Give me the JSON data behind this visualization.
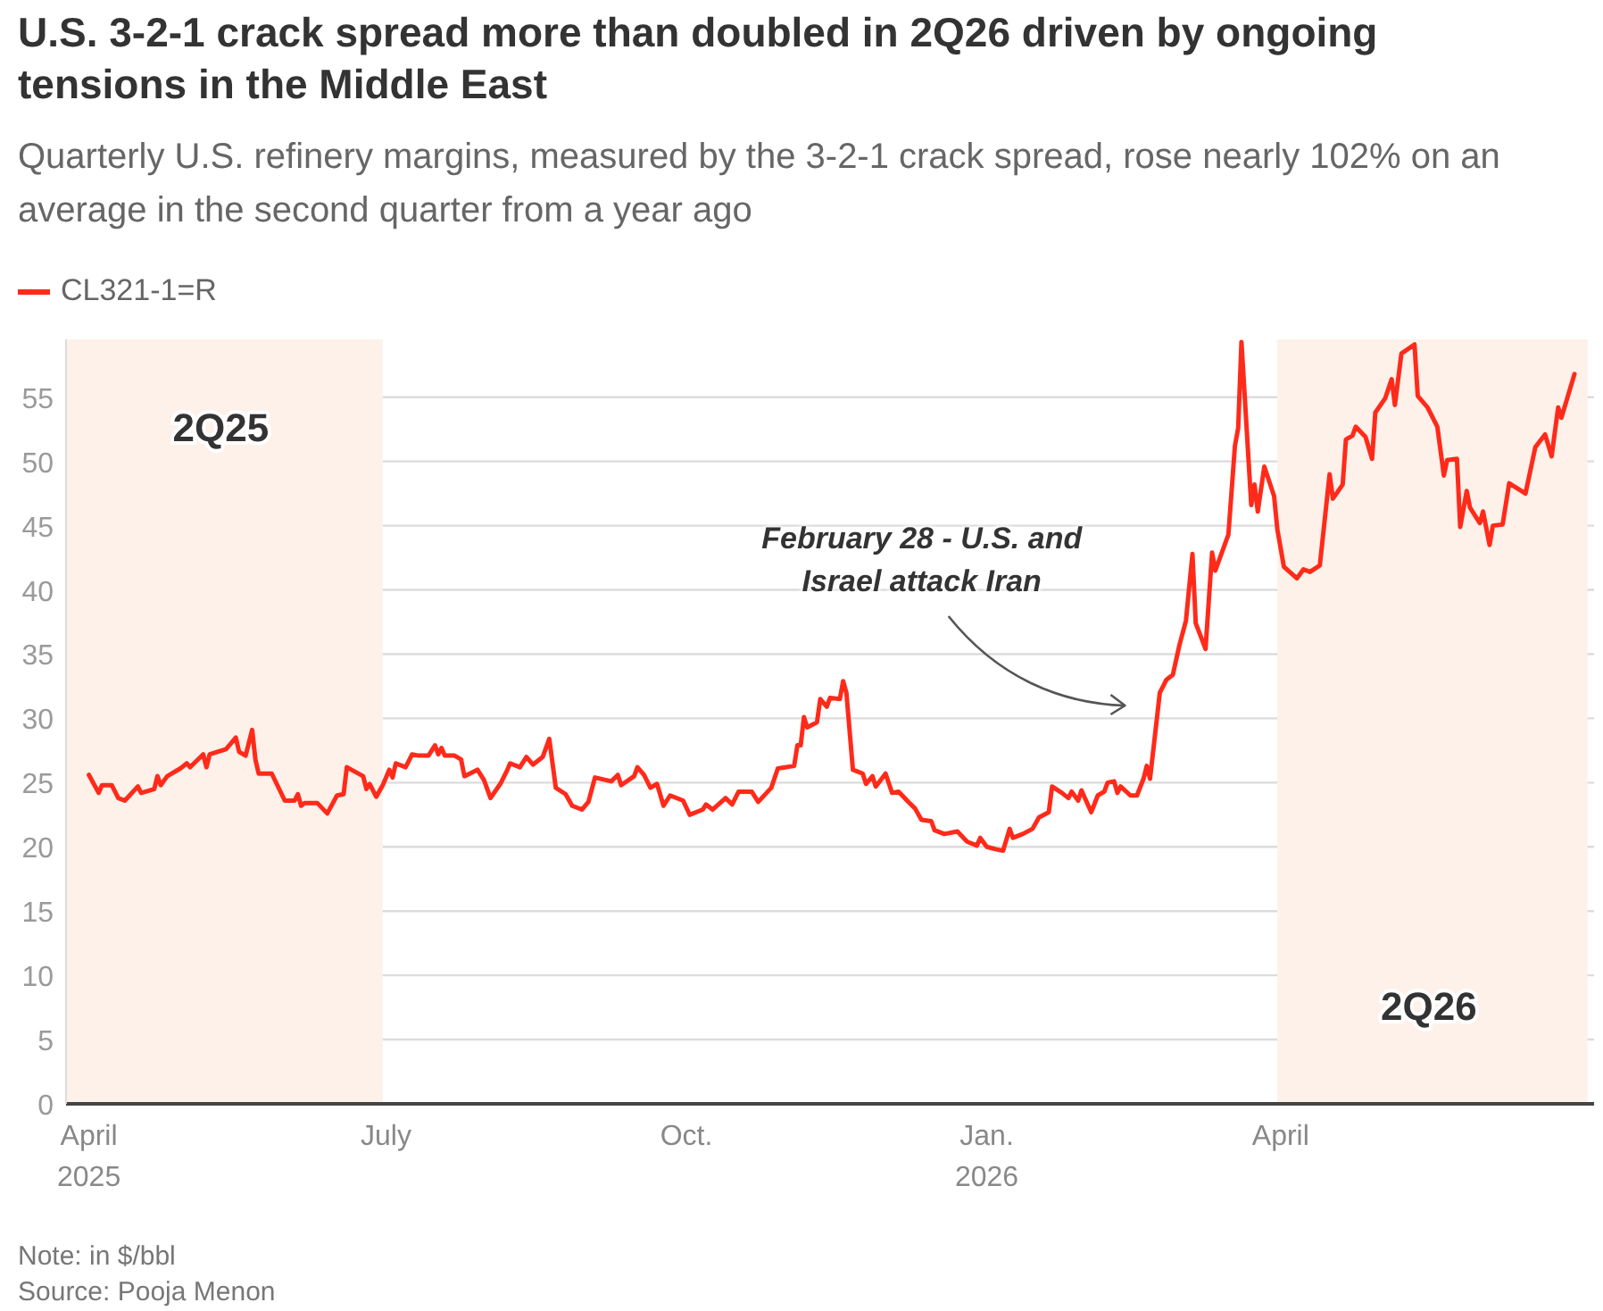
{
  "chart_data": {
    "type": "line",
    "title": "U.S. 3-2-1 crack spread more than doubled in 2Q26 driven by ongoing tensions in the Middle East",
    "subtitle": "Quarterly U.S. refinery margins, measured by the 3-2-1 crack spread, rose nearly 102% on an average in the second quarter from a year ago",
    "x": [
      "2025-04-01",
      "2025-04-04",
      "2025-04-05",
      "2025-04-08",
      "2025-04-10",
      "2025-04-12",
      "2025-04-16",
      "2025-04-17",
      "2025-04-21",
      "2025-04-22",
      "2025-04-23",
      "2025-04-25",
      "2025-04-29",
      "2025-05-01",
      "2025-05-02",
      "2025-05-06",
      "2025-05-07",
      "2025-05-08",
      "2025-05-13",
      "2025-05-16",
      "2025-05-17",
      "2025-05-19",
      "2025-05-21",
      "2025-05-22",
      "2025-05-23",
      "2025-05-27",
      "2025-05-31",
      "2025-06-03",
      "2025-06-04",
      "2025-06-05",
      "2025-06-06",
      "2025-06-10",
      "2025-06-13",
      "2025-06-16",
      "2025-06-18",
      "2025-06-19",
      "2025-06-24",
      "2025-06-25",
      "2025-06-26",
      "2025-06-28",
      "2025-06-30",
      "2025-07-02",
      "2025-07-03",
      "2025-07-04",
      "2025-07-07",
      "2025-07-09",
      "2025-07-11",
      "2025-07-14",
      "2025-07-16",
      "2025-07-17",
      "2025-07-18",
      "2025-07-19",
      "2025-07-22",
      "2025-07-24",
      "2025-07-25",
      "2025-07-29",
      "2025-07-31",
      "2025-08-02",
      "2025-08-05",
      "2025-08-06",
      "2025-08-07",
      "2025-08-08",
      "2025-08-11",
      "2025-08-13",
      "2025-08-15",
      "2025-08-18",
      "2025-08-20",
      "2025-08-22",
      "2025-08-25",
      "2025-08-27",
      "2025-08-30",
      "2025-09-01",
      "2025-09-03",
      "2025-09-08",
      "2025-09-10",
      "2025-09-11",
      "2025-09-15",
      "2025-09-16",
      "2025-09-18",
      "2025-09-20",
      "2025-09-22",
      "2025-09-24",
      "2025-09-26",
      "2025-09-30",
      "2025-10-02",
      "2025-10-06",
      "2025-10-07",
      "2025-10-09",
      "2025-10-13",
      "2025-10-15",
      "2025-10-17",
      "2025-10-21",
      "2025-10-23",
      "2025-10-27",
      "2025-10-29",
      "2025-11-03",
      "2025-11-04",
      "2025-11-05",
      "2025-11-06",
      "2025-11-07",
      "2025-11-10",
      "2025-11-11",
      "2025-11-13",
      "2025-11-14",
      "2025-11-17",
      "2025-11-18",
      "2025-11-19",
      "2025-11-21",
      "2025-11-24",
      "2025-11-25",
      "2025-11-27",
      "2025-11-28",
      "2025-12-01",
      "2025-12-03",
      "2025-12-05",
      "2025-12-08",
      "2025-12-10",
      "2025-12-12",
      "2025-12-15",
      "2025-12-16",
      "2025-12-19",
      "2025-12-23",
      "2025-12-26",
      "2025-12-29",
      "2025-12-30",
      "2026-01-01",
      "2026-01-04",
      "2026-01-06",
      "2026-01-08",
      "2026-01-09",
      "2026-01-12",
      "2026-01-15",
      "2026-01-17",
      "2026-01-20",
      "2026-01-21",
      "2026-01-24",
      "2026-01-26",
      "2026-01-27",
      "2026-01-29",
      "2026-01-30",
      "2026-02-02",
      "2026-02-04",
      "2026-02-06",
      "2026-02-07",
      "2026-02-09",
      "2026-02-10",
      "2026-02-11",
      "2026-02-14",
      "2026-02-16",
      "2026-02-18",
      "2026-02-19",
      "2026-02-20",
      "2026-02-23",
      "2026-02-25",
      "2026-02-27",
      "2026-03-01",
      "2026-03-03",
      "2026-03-05",
      "2026-03-06",
      "2026-03-09",
      "2026-03-11",
      "2026-03-12",
      "2026-03-16",
      "2026-03-18",
      "2026-03-19",
      "2026-03-20",
      "2026-03-23",
      "2026-03-24",
      "2026-03-25",
      "2026-03-27",
      "2026-03-30",
      "2026-03-31",
      "2026-04-02",
      "2026-04-06",
      "2026-04-08",
      "2026-04-10",
      "2026-04-13",
      "2026-04-16",
      "2026-04-17",
      "2026-04-20",
      "2026-04-21",
      "2026-04-23",
      "2026-04-24",
      "2026-04-27",
      "2026-04-29",
      "2026-04-30",
      "2026-05-03",
      "2026-05-05",
      "2026-05-06",
      "2026-05-08",
      "2026-05-12",
      "2026-05-13",
      "2026-05-16",
      "2026-05-19",
      "2026-05-21",
      "2026-05-22",
      "2026-05-25",
      "2026-05-26",
      "2026-05-28",
      "2026-05-29",
      "2026-06-01",
      "2026-06-02",
      "2026-06-04",
      "2026-06-05",
      "2026-06-08",
      "2026-06-10",
      "2026-06-15",
      "2026-06-18",
      "2026-06-21",
      "2026-06-23",
      "2026-06-25",
      "2026-06-26",
      "2026-06-28",
      "2026-06-30"
    ],
    "series": [
      {
        "name": "CL321-1=R",
        "color": "#ff2a1a",
        "values": [
          25.6,
          24.2,
          24.8,
          24.8,
          23.8,
          23.6,
          24.7,
          24.2,
          24.5,
          25.5,
          24.8,
          25.5,
          26.1,
          26.5,
          26.2,
          27.2,
          26.2,
          27.2,
          27.6,
          28.5,
          27.4,
          27.1,
          29.1,
          26.8,
          25.7,
          25.7,
          23.6,
          23.6,
          24.1,
          23.2,
          23.4,
          23.4,
          22.6,
          24.0,
          24.1,
          26.2,
          25.5,
          24.5,
          24.9,
          23.9,
          24.8,
          26.0,
          25.4,
          26.5,
          26.2,
          27.2,
          27.1,
          27.1,
          27.9,
          27.2,
          27.7,
          27.1,
          27.1,
          26.8,
          25.5,
          26.0,
          25.2,
          23.8,
          24.9,
          25.4,
          25.9,
          26.5,
          26.2,
          27.0,
          26.4,
          27.0,
          28.4,
          24.6,
          24.1,
          23.2,
          22.9,
          23.5,
          25.4,
          25.1,
          25.6,
          24.8,
          25.5,
          26.2,
          25.6,
          24.6,
          24.9,
          23.2,
          24.0,
          23.6,
          22.5,
          22.9,
          23.3,
          22.9,
          23.8,
          23.3,
          24.3,
          24.3,
          23.5,
          24.6,
          26.1,
          26.3,
          27.9,
          27.9,
          30.1,
          29.3,
          29.7,
          31.5,
          30.9,
          31.6,
          31.5,
          32.9,
          32.0,
          26.0,
          25.7,
          24.9,
          25.5,
          24.7,
          25.7,
          24.2,
          24.3,
          23.5,
          23.0,
          22.1,
          22.0,
          21.3,
          21.0,
          21.2,
          20.4,
          20.1,
          20.7,
          20.0,
          19.8,
          19.7,
          21.4,
          20.7,
          21.0,
          21.4,
          22.3,
          22.7,
          24.7,
          24.2,
          23.8,
          24.3,
          23.6,
          24.4,
          22.7,
          24.0,
          24.3,
          25.0,
          25.1,
          24.2,
          24.7,
          24.0,
          24.0,
          25.3,
          26.3,
          25.3,
          32.0,
          33.0,
          33.4,
          35.7,
          37.6,
          42.8,
          37.4,
          35.4,
          42.9,
          41.5,
          44.3,
          51.2,
          52.6,
          59.3,
          46.6,
          48.2,
          46.1,
          49.6,
          47.3,
          44.7,
          41.8,
          40.9,
          41.6,
          41.4,
          41.9,
          49.0,
          47.1,
          48.2,
          51.7,
          52.0,
          52.7,
          51.9,
          50.2,
          53.8,
          54.9,
          56.4,
          54.4,
          58.4,
          59.1,
          55.1,
          54.2,
          52.7,
          48.9,
          50.1,
          50.2,
          44.9,
          47.7,
          46.4,
          45.2,
          46.1,
          43.5,
          45.0,
          45.1,
          48.3,
          47.5,
          51.1,
          52.1,
          50.4,
          54.2,
          53.4,
          55.1,
          56.8
        ]
      }
    ],
    "xlim": [
      "2025-03-25",
      "2026-07-06"
    ],
    "xticks": [
      {
        "value": "2025-04-01",
        "label": "April 2025"
      },
      {
        "value": "2025-07-01",
        "label": "July"
      },
      {
        "value": "2025-10-01",
        "label": "Oct."
      },
      {
        "value": "2026-01-01",
        "label": "Jan. 2026"
      },
      {
        "value": "2026-04-01",
        "label": "April"
      }
    ],
    "ylim": [
      0,
      59.5
    ],
    "yticks": [
      0,
      5,
      10,
      15,
      20,
      25,
      30,
      35,
      40,
      45,
      50,
      55
    ],
    "grid": "y",
    "legend": "top left",
    "bands": [
      {
        "axis": "x",
        "from": "2025-03-25",
        "to": "2025-06-30",
        "label": "2Q25",
        "color": "#fdf1ea"
      },
      {
        "axis": "x",
        "from": "2026-03-31",
        "to": "2026-07-04",
        "label": "2Q26",
        "color": "#fdf1ea"
      }
    ],
    "annotations": [
      "February 28 - U.S. and Israel attack Iran",
      "Note: in $/bbl",
      "Source: Pooja Menon"
    ]
  }
}
